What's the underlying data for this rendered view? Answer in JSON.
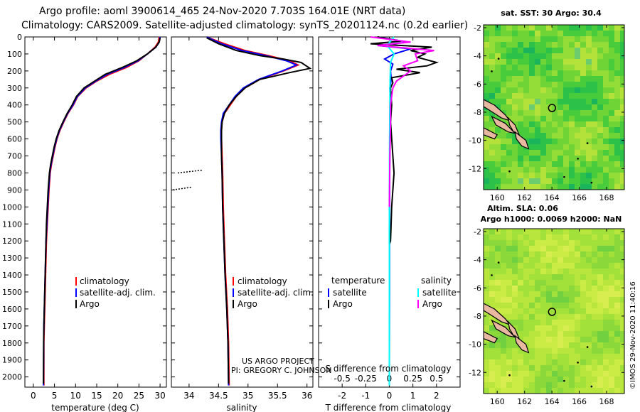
{
  "header": {
    "line1": "Argo profile: aoml 3900614_465 24-Nov-2020 7.703S 164.01E (NRT data)",
    "line2": "Climatology: CARS2009. Satellite-adjusted climatology: synTS_20201124.nc (0.2d earlier)"
  },
  "colors": {
    "climatology": "#ff0000",
    "satellite_adj": "#0000ff",
    "argo": "#000000",
    "salinity_satellite": "#00ffff",
    "salinity_argo": "#ff00ff"
  },
  "chart_data": [
    {
      "type": "line",
      "name": "temperature-profile",
      "xlabel": "temperature (deg C)",
      "xlim": [
        -2,
        31.5
      ],
      "xticks": [
        0,
        5,
        10,
        15,
        20,
        25,
        30
      ],
      "ylim": [
        2060,
        0
      ],
      "yticks": [
        0,
        100,
        200,
        300,
        400,
        500,
        600,
        700,
        800,
        900,
        1000,
        1100,
        1200,
        1300,
        1400,
        1500,
        1600,
        1700,
        1800,
        1900,
        2000
      ],
      "legend": [
        "climatology",
        "satellite-adj. clim.",
        "Argo"
      ],
      "series": [
        {
          "name": "climatology",
          "color": "#ff0000",
          "x": [
            29.8,
            29.6,
            28.8,
            27,
            25,
            22,
            18,
            15,
            12.5,
            10.5,
            9.5,
            8.2,
            7.2,
            6.3,
            5.6,
            5.1,
            4.7,
            4.3,
            4,
            3.7,
            3.5,
            3.3,
            3.1,
            3,
            2.9,
            2.8,
            2.7,
            2.6,
            2.5,
            2.5
          ],
          "y": [
            0,
            30,
            60,
            100,
            140,
            180,
            220,
            260,
            300,
            350,
            400,
            450,
            500,
            550,
            600,
            650,
            700,
            750,
            800,
            900,
            1000,
            1100,
            1200,
            1300,
            1400,
            1500,
            1600,
            1700,
            1800,
            2050
          ]
        },
        {
          "name": "satellite-adj. clim.",
          "color": "#0000ff",
          "x": [
            30,
            29.8,
            29,
            27,
            24.8,
            21.5,
            17.5,
            14.8,
            12.3,
            10.4,
            9.4,
            8.1,
            7.1,
            6.2,
            5.5,
            5,
            4.6,
            4.2,
            3.9,
            3.6,
            3.4,
            3.2,
            3,
            2.9,
            2.8,
            2.7,
            2.6,
            2.5,
            2.45,
            2.4
          ],
          "y": [
            0,
            30,
            60,
            100,
            140,
            180,
            220,
            260,
            300,
            350,
            400,
            450,
            500,
            550,
            600,
            650,
            700,
            750,
            800,
            900,
            1000,
            1100,
            1200,
            1300,
            1400,
            1500,
            1600,
            1700,
            1800,
            2050
          ]
        },
        {
          "name": "Argo",
          "color": "#000000",
          "x": [
            30,
            29.8,
            29,
            27,
            24.5,
            21,
            17,
            14.5,
            12,
            10.2,
            9.2,
            8,
            7,
            6.1,
            5.4,
            4.9,
            4.5,
            4.1,
            3.8,
            3.5,
            3.3,
            3.1,
            3,
            2.9,
            2.8,
            2.7,
            2.6,
            2.5,
            2.45,
            2.4
          ],
          "y": [
            5,
            30,
            60,
            100,
            140,
            180,
            220,
            260,
            300,
            350,
            400,
            450,
            500,
            550,
            600,
            650,
            700,
            750,
            800,
            900,
            1000,
            1100,
            1200,
            1300,
            1400,
            1500,
            1600,
            1700,
            1800,
            2040
          ]
        }
      ]
    },
    {
      "type": "line",
      "name": "salinity-profile",
      "xlabel": "salinity",
      "xlim": [
        33.7,
        36.1
      ],
      "xticks": [
        34,
        34.5,
        35,
        35.5,
        36
      ],
      "ylim": [
        2060,
        0
      ],
      "legend": [
        "climatology",
        "satellite-adj. clim.",
        "Argo"
      ],
      "series": [
        {
          "name": "climatology",
          "color": "#ff0000",
          "x": [
            34.3,
            34.6,
            34.95,
            35.35,
            35.7,
            35.85,
            35.6,
            35.2,
            34.95,
            34.8,
            34.7,
            34.6,
            34.56,
            34.55,
            34.55,
            34.56,
            34.57,
            34.58,
            34.6,
            34.62,
            34.65,
            34.67,
            34.68
          ],
          "y": [
            0,
            40,
            80,
            110,
            140,
            165,
            200,
            250,
            300,
            350,
            400,
            450,
            500,
            550,
            600,
            700,
            800,
            1000,
            1200,
            1400,
            1600,
            1800,
            2050
          ]
        },
        {
          "name": "satellite-adj. clim.",
          "color": "#0000ff",
          "x": [
            34.3,
            34.55,
            34.9,
            35.3,
            35.65,
            35.82,
            35.58,
            35.18,
            34.92,
            34.78,
            34.68,
            34.58,
            34.55,
            34.54,
            34.54,
            34.55,
            34.56,
            34.57,
            34.59,
            34.61,
            34.64,
            34.66,
            34.67
          ],
          "y": [
            0,
            40,
            80,
            110,
            140,
            165,
            200,
            250,
            300,
            350,
            400,
            450,
            500,
            550,
            600,
            700,
            800,
            1000,
            1200,
            1400,
            1600,
            1800,
            2050
          ]
        },
        {
          "name": "Argo",
          "color": "#000000",
          "x": [
            34.3,
            34.5,
            34.8,
            35.2,
            35.6,
            35.9,
            36.05,
            35.7,
            35.2,
            34.95,
            34.8,
            34.68,
            34.6,
            34.56,
            34.55,
            34.55,
            34.56,
            34.57,
            34.59,
            34.61,
            34.64,
            34.66,
            34.67
          ],
          "y": [
            5,
            40,
            80,
            110,
            130,
            150,
            185,
            210,
            250,
            300,
            350,
            400,
            450,
            500,
            550,
            700,
            800,
            1000,
            1200,
            1400,
            1600,
            1800,
            2040
          ]
        }
      ]
    },
    {
      "type": "line",
      "name": "difference-profile",
      "xlabel": "T difference from climatology",
      "xlabel2": "S difference from climatology",
      "xlim": [
        -3,
        3
      ],
      "xticks": [
        -2,
        -1,
        0,
        1,
        2
      ],
      "x2ticks": [
        -0.5,
        -0.25,
        0,
        0.25,
        0.5
      ],
      "ylim": [
        2060,
        0
      ],
      "legend_left_title": "temperature",
      "legend_right_title": "salinity",
      "legend_left": [
        "satellite",
        "Argo"
      ],
      "legend_right": [
        "satellite",
        "Argo"
      ],
      "series": [
        {
          "name": "temperature satellite",
          "color": "#0000ff",
          "x": [
            -0.5,
            0.8,
            -0.5,
            0.9,
            0.2,
            -0.2,
            0.15,
            0.05,
            0.08,
            0.02,
            0.05,
            0.03,
            0.02,
            0.01,
            0.01,
            0
          ],
          "y": [
            0,
            30,
            50,
            70,
            100,
            130,
            160,
            200,
            250,
            300,
            400,
            500,
            700,
            1000,
            1500,
            2050
          ]
        },
        {
          "name": "temperature Argo",
          "color": "#000000",
          "x": [
            -0.5,
            0.5,
            -0.8,
            1.8,
            0.9,
            1.5,
            1.2,
            2.0,
            1.6,
            0.3,
            1.3,
            0.1,
            0.15,
            0.05,
            0.1,
            0.05,
            0.2,
            0.1,
            0.05,
            0
          ],
          "y": [
            0,
            25,
            40,
            60,
            80,
            100,
            120,
            150,
            170,
            190,
            210,
            240,
            270,
            300,
            400,
            500,
            800,
            1000,
            1200,
            1220
          ]
        },
        {
          "name": "salinity satellite",
          "color": "#00ffff",
          "x": [
            0.2,
            -0.1,
            0.2,
            0.05,
            0.03,
            0.02,
            0.01,
            0,
            0,
            0
          ],
          "y": [
            0,
            50,
            100,
            150,
            250,
            400,
            600,
            1000,
            1500,
            2050
          ]
        },
        {
          "name": "salinity Argo",
          "color": "#ff00ff",
          "x": [
            -0.8,
            0.9,
            -0.5,
            1.9,
            1.1,
            1.2,
            0.6,
            0.9,
            0.3,
            0.15,
            0.1,
            0.05,
            0.05,
            0.02,
            0
          ],
          "y": [
            0,
            30,
            50,
            80,
            100,
            140,
            170,
            200,
            260,
            300,
            350,
            400,
            500,
            700,
            1000
          ]
        }
      ]
    },
    {
      "type": "heatmap",
      "name": "sst-map",
      "title": "sat. SST: 30 Argo: 30.4",
      "xticks": [
        160,
        162,
        164,
        166,
        168
      ],
      "yticks": [
        -2,
        -4,
        -6,
        -8,
        -10,
        -12
      ],
      "profile_lon": 164.01,
      "profile_lat": -7.703
    },
    {
      "type": "heatmap",
      "name": "sla-map",
      "title": "Altim. SLA: 0.06",
      "subtitle": "Argo h1000: 0.0069 h2000: NaN",
      "xticks": [
        160,
        162,
        164,
        166,
        168
      ],
      "yticks": [
        -2,
        -4,
        -6,
        -8,
        -10,
        -12
      ],
      "profile_lon": 164.01,
      "profile_lat": -7.703
    }
  ],
  "legend_labels": {
    "climatology": "climatology",
    "satellite_adj": "satellite-adj. clim.",
    "argo": "Argo",
    "temperature": "temperature",
    "salinity": "salinity",
    "satellite": "satellite"
  },
  "credits": {
    "project": "US ARGO PROJECT",
    "pi": "PI: GREGORY C. JOHNSON",
    "imos": "©IMOS 29-Nov-2020 11:40:16"
  }
}
